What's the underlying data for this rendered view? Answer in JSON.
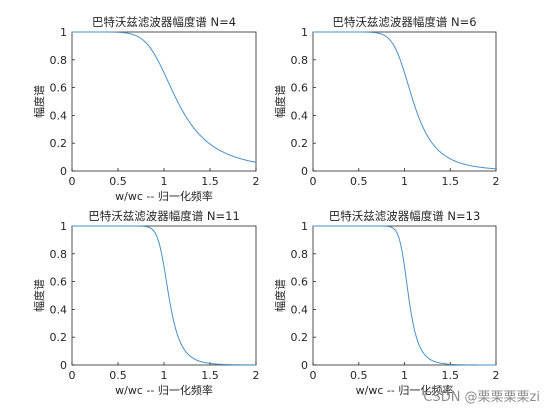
{
  "watermark": "CSDN @栗栗栗栗zi",
  "chart_data": [
    {
      "type": "line",
      "title": "巴特沃兹滤波器幅度谱 N=4",
      "xlabel": "w/wc -- 归一化频率",
      "ylabel": "幅度谱",
      "N": 4,
      "xlim": [
        0,
        2
      ],
      "ylim": [
        0,
        1
      ],
      "xticks": [
        "0",
        "0.5",
        "1",
        "1.5",
        "2"
      ],
      "yticks": [
        "0",
        "0.2",
        "0.4",
        "0.6",
        "0.8",
        "1"
      ],
      "series": [
        {
          "color": "#4a90c8",
          "x": [
            0,
            0.1,
            0.2,
            0.3,
            0.4,
            0.5,
            0.6,
            0.7,
            0.8,
            0.9,
            1.0,
            1.1,
            1.2,
            1.3,
            1.4,
            1.5,
            1.6,
            1.7,
            1.8,
            1.9,
            2.0
          ],
          "y": [
            1.0,
            1.0,
            1.0,
            1.0,
            0.9997,
            0.9981,
            0.9917,
            0.9725,
            0.9253,
            0.8363,
            0.7071,
            0.5637,
            0.4343,
            0.3305,
            0.2521,
            0.195,
            0.1534,
            0.1226,
            0.0995,
            0.0819,
            0.0624
          ]
        }
      ],
      "grid": false
    },
    {
      "type": "line",
      "title": "巴特沃兹滤波器幅度谱 N=6",
      "xlabel": "",
      "ylabel": "幅度谱",
      "N": 6,
      "xlim": [
        0,
        2
      ],
      "ylim": [
        0,
        1
      ],
      "xticks": [
        "0",
        "0.5",
        "1",
        "1.5",
        "2"
      ],
      "yticks": [
        "0",
        "0.2",
        "0.4",
        "0.6",
        "0.8",
        "1"
      ],
      "series": [
        {
          "color": "#4a90c8",
          "x": [
            0,
            0.1,
            0.2,
            0.3,
            0.4,
            0.5,
            0.6,
            0.7,
            0.8,
            0.9,
            1.0,
            1.1,
            1.2,
            1.3,
            1.4,
            1.5,
            1.6,
            1.7,
            1.8,
            1.9,
            2.0
          ],
          "y": [
            1.0,
            1.0,
            1.0,
            1.0,
            1.0,
            0.9999,
            0.9989,
            0.9941,
            0.9741,
            0.9119,
            0.7071,
            0.493,
            0.3168,
            0.2026,
            0.1326,
            0.0878,
            0.0595,
            0.0413,
            0.0294,
            0.0213,
            0.0156
          ]
        }
      ],
      "grid": false
    },
    {
      "type": "line",
      "title": "巴特沃兹滤波器幅度谱 N=11",
      "xlabel": "w/wc -- 归一化频率",
      "ylabel": "幅度谱",
      "N": 11,
      "xlim": [
        0,
        2
      ],
      "ylim": [
        0,
        1
      ],
      "xticks": [
        "0",
        "0.5",
        "1",
        "1.5",
        "2"
      ],
      "yticks": [
        "0",
        "0.2",
        "0.4",
        "0.6",
        "0.8",
        "1"
      ],
      "series": [
        {
          "color": "#4a90c8",
          "x": [
            0,
            0.1,
            0.2,
            0.3,
            0.4,
            0.5,
            0.6,
            0.7,
            0.8,
            0.9,
            1.0,
            1.1,
            1.2,
            1.3,
            1.4,
            1.5,
            1.6,
            1.7,
            1.8,
            1.9,
            2.0
          ],
          "y": [
            1.0,
            1.0,
            1.0,
            1.0,
            1.0,
            1.0,
            1.0,
            1.0,
            0.9995,
            0.9865,
            0.7071,
            0.199,
            0.0357,
            0.0068,
            0.0016,
            0.0004,
            0.0001,
            0.0,
            0.0,
            0.0,
            0.0
          ]
        }
      ],
      "grid": false
    },
    {
      "type": "line",
      "title": "巴特沃兹滤波器幅度谱 N=13",
      "xlabel": "w/wc -- 归一化频率",
      "ylabel": "幅度谱",
      "N": 13,
      "xlim": [
        0,
        2
      ],
      "ylim": [
        0,
        1
      ],
      "xticks": [
        "0",
        "0.5",
        "1",
        "1.5",
        "2"
      ],
      "yticks": [
        "0",
        "0.2",
        "0.4",
        "0.6",
        "0.8",
        "1"
      ],
      "series": [
        {
          "color": "#4a90c8",
          "x": [
            0,
            0.1,
            0.2,
            0.3,
            0.4,
            0.5,
            0.6,
            0.7,
            0.8,
            0.9,
            1.0,
            1.1,
            1.2,
            1.3,
            1.4,
            1.5,
            1.6,
            1.7,
            1.8,
            1.9,
            2.0
          ],
          "y": [
            1.0,
            1.0,
            1.0,
            1.0,
            1.0,
            1.0,
            1.0,
            1.0,
            0.9998,
            0.9917,
            0.7071,
            0.1693,
            0.0221,
            0.0035,
            0.0006,
            0.0001,
            0.0,
            0.0,
            0.0,
            0.0,
            0.0
          ]
        }
      ],
      "grid": false
    }
  ]
}
